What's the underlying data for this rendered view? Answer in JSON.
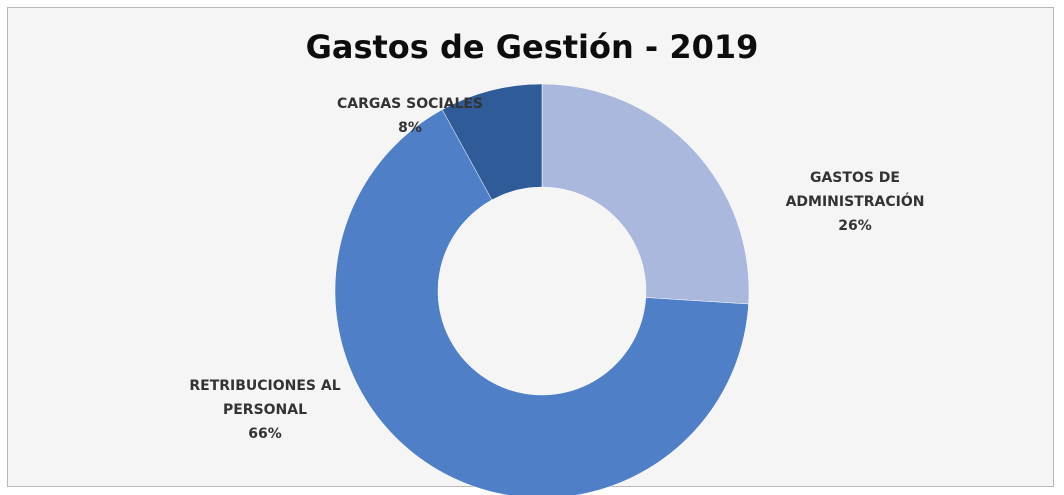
{
  "chart_data": {
    "type": "pie",
    "variant": "donut",
    "title": "Gastos de Gestión - 2019",
    "slices": [
      {
        "name": "GASTOS DE ADMINISTRACIÓN",
        "label_lines": [
          "GASTOS DE",
          "ADMINISTRACIÓN"
        ],
        "value": 26,
        "value_label": "26%",
        "color": "#a9b8dc"
      },
      {
        "name": "RETRIBUCIONES AL PERSONAL",
        "label_lines": [
          "RETRIBUCIONES AL",
          "PERSONAL"
        ],
        "value": 66,
        "value_label": "66%",
        "color": "#4f7fc6"
      },
      {
        "name": "CARGAS SOCIALES",
        "label_lines": [
          "CARGAS SOCIALES"
        ],
        "value": 8,
        "value_label": "8%",
        "color": "#2f5c98"
      }
    ],
    "start": "12 o'clock, clockwise",
    "legend": "none, labels outside slices"
  }
}
